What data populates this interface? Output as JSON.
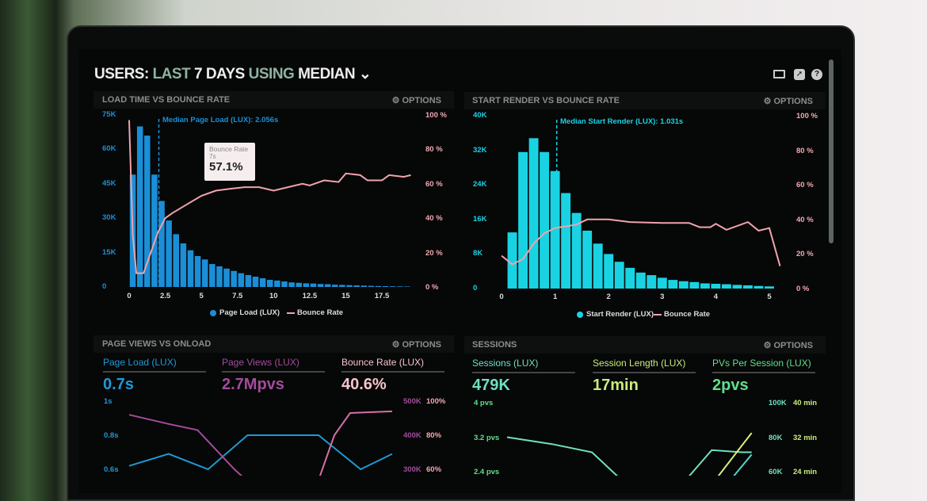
{
  "header": {
    "parts": [
      "USERS:",
      "LAST",
      "7 DAYS",
      "USING",
      "MEDIAN"
    ],
    "icons": [
      "monitor-icon",
      "share-icon",
      "help-icon"
    ]
  },
  "panels": [
    {
      "title": "LOAD TIME VS BOUNCE RATE",
      "options": "OPTIONS"
    },
    {
      "title": "START RENDER VS BOUNCE RATE",
      "options": "OPTIONS"
    },
    {
      "title": "PAGE VIEWS VS ONLOAD",
      "options": "OPTIONS"
    },
    {
      "title": "SESSIONS",
      "options": "OPTIONS"
    }
  ],
  "tooltip": {
    "label": "Bounce Rate",
    "x": "7s",
    "value": "57.1%"
  },
  "kpis": {
    "left": [
      {
        "label": "Page Load (LUX)",
        "value": "0.7s",
        "color": "#1e9ad6"
      },
      {
        "label": "Page Views (LUX)",
        "value": "2.7Mpvs",
        "color": "#a24c9c"
      },
      {
        "label": "Bounce Rate (LUX)",
        "value": "40.6%",
        "color": "#f6c4cc"
      }
    ],
    "right": [
      {
        "label": "Sessions (LUX)",
        "value": "479K",
        "color": "#6fe0c2"
      },
      {
        "label": "Session Length (LUX)",
        "value": "17min",
        "color": "#c9ec7a"
      },
      {
        "label": "PVs Per Session (LUX)",
        "value": "2pvs",
        "color": "#5fe08a"
      }
    ]
  },
  "chart_data": [
    {
      "type": "bar",
      "title": "LOAD TIME VS BOUNCE RATE",
      "color": "#1a8fd8",
      "line_color": "#f0a3ad",
      "annotation": "Median Page Load (LUX): 2.056s",
      "median": 2.056,
      "xticks": [
        "0",
        "2.5",
        "5",
        "7.5",
        "10",
        "12.5",
        "15",
        "17.5"
      ],
      "yticks": [
        "0",
        "15K",
        "30K",
        "45K",
        "60K",
        "75K"
      ],
      "y2ticks": [
        "0 %",
        "20 %",
        "40 %",
        "60 %",
        "80 %",
        "100 %"
      ],
      "xlim": [
        0,
        19.75
      ],
      "ylim": [
        0,
        75000
      ],
      "y2lim": [
        0,
        100
      ],
      "legend": [
        "Page Load (LUX)",
        "Bounce Rate"
      ],
      "legend_position": "bottom",
      "bar_width": 0.5,
      "series": [
        {
          "name": "Page Load (LUX)",
          "x_start": 0,
          "step": 0.5,
          "values": [
            49000,
            70000,
            66000,
            49000,
            37500,
            29000,
            23000,
            19000,
            16000,
            13500,
            12000,
            10000,
            9000,
            8000,
            7000,
            6000,
            5200,
            4500,
            3800,
            3100,
            2800,
            2400,
            2000,
            1800,
            1600,
            1500,
            1300,
            1200,
            1000,
            900,
            800,
            700,
            600,
            500,
            400,
            350,
            300,
            250,
            200
          ]
        },
        {
          "name": "Bounce Rate",
          "points": [
            [
              0,
              97
            ],
            [
              0.25,
              30
            ],
            [
              0.5,
              8
            ],
            [
              1,
              8
            ],
            [
              1.5,
              20
            ],
            [
              2,
              32
            ],
            [
              2.5,
              40
            ],
            [
              3,
              43
            ],
            [
              4,
              48
            ],
            [
              5,
              53
            ],
            [
              6,
              56
            ],
            [
              7,
              57.1
            ],
            [
              8,
              58
            ],
            [
              9,
              58
            ],
            [
              10,
              56
            ],
            [
              11,
              58
            ],
            [
              12,
              60
            ],
            [
              12.5,
              59
            ],
            [
              13.5,
              62
            ],
            [
              14.5,
              61
            ],
            [
              15,
              66
            ],
            [
              16,
              65
            ],
            [
              16.5,
              62
            ],
            [
              17.5,
              62
            ],
            [
              18,
              65
            ],
            [
              19,
              64
            ],
            [
              19.5,
              65
            ]
          ]
        }
      ]
    },
    {
      "type": "bar",
      "title": "START RENDER VS BOUNCE RATE",
      "color": "#19d3e3",
      "line_color": "#f0a3ad",
      "annotation": "Median Start Render (LUX): 1.031s",
      "median": 1.031,
      "xticks": [
        "0",
        "1",
        "2",
        "3",
        "4",
        "5"
      ],
      "yticks": [
        "0",
        "8K",
        "16K",
        "24K",
        "32K",
        "40K"
      ],
      "y2ticks": [
        "0 %",
        "20 %",
        "40 %",
        "60 %",
        "80 %",
        "100 %"
      ],
      "xlim": [
        0,
        5.3
      ],
      "ylim": [
        0,
        40000
      ],
      "y2lim": [
        0,
        100
      ],
      "legend": [
        "Start Render (LUX)",
        "Bounce Rate"
      ],
      "legend_position": "bottom",
      "bar_width": 0.2,
      "series": [
        {
          "name": "Start Render (LUX)",
          "x_start": 0.2,
          "step": 0.2,
          "values": [
            13000,
            31600,
            34800,
            31600,
            27200,
            22100,
            17500,
            13400,
            10400,
            8000,
            6200,
            4800,
            3700,
            3100,
            2500,
            2000,
            1700,
            1500,
            1200,
            1100,
            1000,
            850,
            750,
            600,
            500
          ]
        },
        {
          "name": "Bounce Rate",
          "points": [
            [
              0,
              19
            ],
            [
              0.2,
              14
            ],
            [
              0.4,
              17
            ],
            [
              0.6,
              26
            ],
            [
              0.8,
              32
            ],
            [
              1,
              35
            ],
            [
              1.4,
              37
            ],
            [
              1.6,
              40
            ],
            [
              2,
              40
            ],
            [
              2.4,
              38.5
            ],
            [
              3,
              38
            ],
            [
              3.5,
              38
            ],
            [
              3.7,
              35.5
            ],
            [
              3.9,
              35.5
            ],
            [
              4,
              37.5
            ],
            [
              4.2,
              34
            ],
            [
              4.6,
              38.5
            ],
            [
              4.8,
              33.5
            ],
            [
              5,
              35
            ],
            [
              5.2,
              13
            ]
          ]
        }
      ]
    },
    {
      "type": "line",
      "title": "PAGE VIEWS VS ONLOAD",
      "yticks": [
        "1s",
        "0.8s",
        "0.6s"
      ],
      "y2ticks": [
        "500K",
        "400K",
        "300K"
      ],
      "y3ticks": [
        "100%",
        "80%",
        "60%"
      ],
      "ylim": [
        0.6,
        1
      ],
      "series": [
        {
          "name": "Page Load (LUX)",
          "color": "#1e9ad6",
          "axis": "s",
          "points": [
            [
              0,
              0.62
            ],
            [
              1.5,
              0.69
            ],
            [
              3,
              0.6
            ],
            [
              4.5,
              0.8
            ],
            [
              7.2,
              0.8
            ],
            [
              8.8,
              0.6
            ],
            [
              10,
              0.69
            ]
          ]
        },
        {
          "name": "Page Views (LUX)",
          "color": "#a24c9c",
          "axis": "K",
          "points": [
            [
              0,
              460
            ],
            [
              1.5,
              433
            ],
            [
              2.6,
              415
            ],
            [
              4,
              300
            ],
            [
              5,
              230
            ]
          ]
        },
        {
          "name": "Bounce Rate (LUX)",
          "color": "#d46fa8",
          "axis": "%",
          "points": [
            [
              7,
              45
            ],
            [
              7.8,
              80
            ],
            [
              8.4,
              93
            ],
            [
              10,
              94
            ]
          ]
        }
      ]
    },
    {
      "type": "line",
      "title": "SESSIONS",
      "yticks": [
        "4 pvs",
        "3.2 pvs",
        "2.4 pvs"
      ],
      "y2ticks": [
        "100K",
        "80K",
        "60K"
      ],
      "y3ticks": [
        "40 min",
        "32 min",
        "24 min"
      ],
      "ylim": [
        2.4,
        4
      ],
      "series": [
        {
          "name": "PVs Per Session (LUX)",
          "color": "#6fe0c2",
          "points": [
            [
              0,
              3.2
            ],
            [
              1.8,
              3.04
            ],
            [
              3.4,
              2.85
            ],
            [
              4.6,
              2.2
            ]
          ]
        },
        {
          "name": "Sessions (LUX)",
          "color": "#6fe0c2",
          "points": [
            [
              7,
              2.1
            ],
            [
              8.2,
              2.9
            ],
            [
              9.4,
              2.85
            ],
            [
              9.8,
              2.85
            ]
          ]
        },
        {
          "name": "Session Length (LUX)",
          "color": "#d7ef7a",
          "points": [
            [
              8.2,
              2.1
            ],
            [
              9.4,
              3.0
            ],
            [
              9.8,
              3.3
            ]
          ]
        },
        {
          "name": "Sessions (LUX) 2",
          "color": "#4fd6c8",
          "points": [
            [
              8.8,
              2.1
            ],
            [
              9.8,
              2.8
            ]
          ]
        }
      ]
    }
  ]
}
